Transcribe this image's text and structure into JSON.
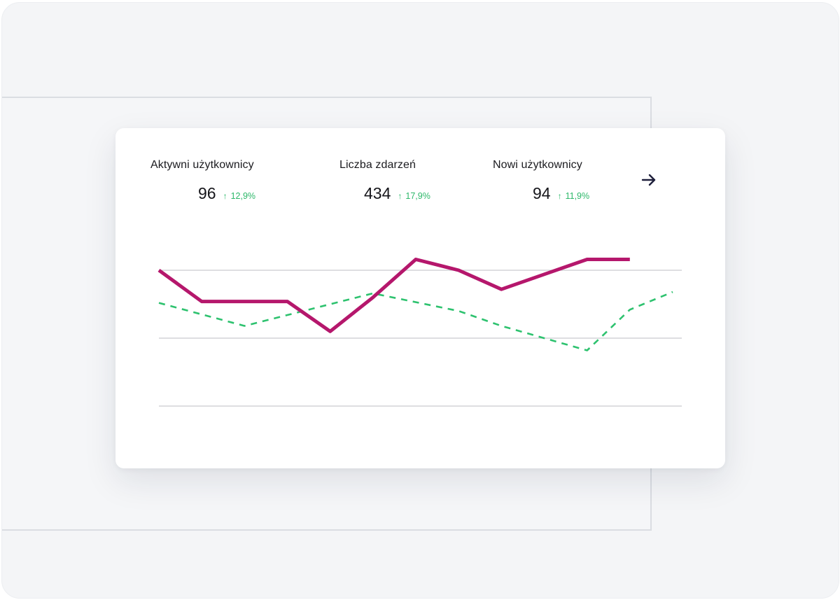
{
  "metrics": [
    {
      "title": "Aktywni użytkownicy",
      "value": "96",
      "change": "12,9%"
    },
    {
      "title": "Liczba zdarzeń",
      "value": "434",
      "change": "17,9%"
    },
    {
      "title": "Nowi użytkownicy",
      "value": "94",
      "change": "11,9%"
    }
  ],
  "icons": {
    "trend": "arrow-up-icon",
    "next": "arrow-right-icon"
  },
  "colors": {
    "primary_series": "#b5176c",
    "secondary_series": "#2ec26f",
    "increase": "#2db86a",
    "gridline": "#c9c9cf"
  },
  "chart_data": {
    "type": "line",
    "title": "",
    "xlabel": "",
    "ylabel": "",
    "grid": true,
    "ylim": [
      0,
      100
    ],
    "gridlines": [
      0,
      50,
      100
    ],
    "x": [
      0,
      1,
      2,
      3,
      4,
      5,
      6,
      7,
      8,
      9,
      10,
      11,
      12
    ],
    "series": [
      {
        "style": "solid",
        "values": [
          100,
          77,
          77,
          77,
          55,
          80,
          108,
          100,
          86,
          97,
          108,
          108,
          null
        ]
      },
      {
        "style": "dashed",
        "values": [
          76,
          null,
          59,
          null,
          null,
          83,
          null,
          70,
          59,
          null,
          41,
          71,
          84
        ]
      }
    ]
  }
}
